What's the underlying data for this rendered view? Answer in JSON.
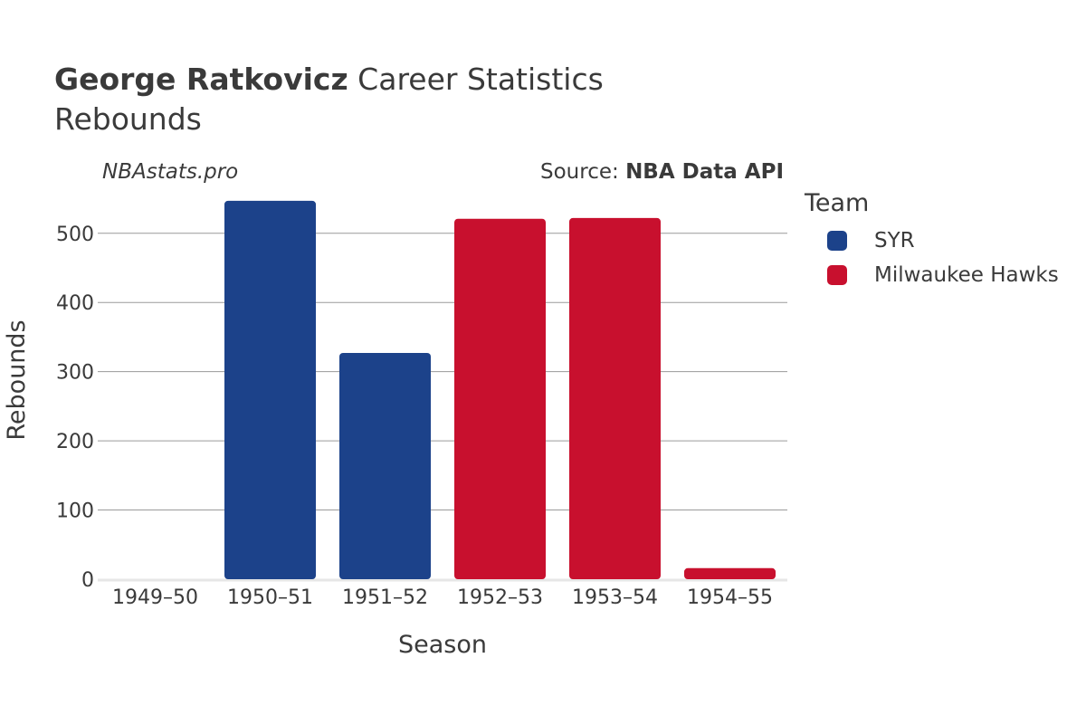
{
  "header": {
    "title_bold": "George Ratkovicz",
    "title_rest": " Career Statistics",
    "subtitle": "Rebounds"
  },
  "watermark": "NBAstats.pro",
  "source": {
    "prefix": "Source: ",
    "name": "NBA Data API"
  },
  "legend": {
    "title": "Team",
    "items": [
      {
        "label": "SYR",
        "color": "#1c428a"
      },
      {
        "label": "Milwaukee Hawks",
        "color": "#c8102e"
      }
    ]
  },
  "chart_data": {
    "type": "bar",
    "categories": [
      "1949–50",
      "1950–51",
      "1951–52",
      "1952–53",
      "1953–54",
      "1954–55"
    ],
    "values": [
      0,
      547,
      327,
      521,
      522,
      16
    ],
    "teams": [
      "SYR",
      "SYR",
      "SYR",
      "Milwaukee Hawks",
      "Milwaukee Hawks",
      "Milwaukee Hawks"
    ],
    "xlabel": "Season",
    "ylabel": "Rebounds",
    "ylim": [
      0,
      560
    ],
    "yticks": [
      0,
      100,
      200,
      300,
      400,
      500
    ],
    "grid": true,
    "legend_position": "right"
  }
}
